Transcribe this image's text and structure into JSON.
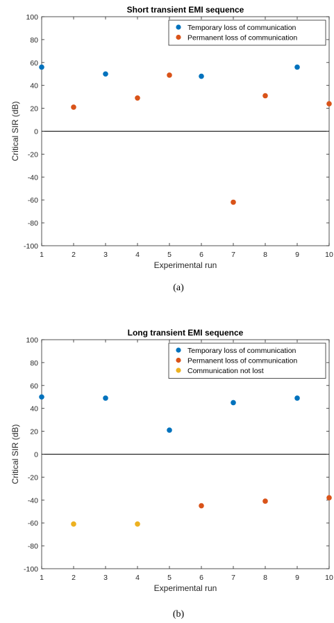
{
  "chart_data": [
    {
      "type": "scatter",
      "title": "Short transient EMI sequence",
      "xlabel": "Experimental run",
      "ylabel": "Critical SIR (dB)",
      "xlim": [
        1,
        10
      ],
      "ylim": [
        -100,
        100
      ],
      "xticks": [
        1,
        2,
        3,
        4,
        5,
        6,
        7,
        8,
        9,
        10
      ],
      "yticks": [
        -100,
        -80,
        -60,
        -40,
        -20,
        0,
        20,
        40,
        60,
        80,
        100
      ],
      "grid": false,
      "zero_line": true,
      "legend_position": "top-right",
      "caption": "(a)",
      "series": [
        {
          "name": "Temporary loss of communication",
          "color": "#0072BD",
          "points": [
            [
              1,
              56
            ],
            [
              3,
              50
            ],
            [
              6,
              48
            ],
            [
              9,
              56
            ]
          ]
        },
        {
          "name": "Permanent loss of communication",
          "color": "#D95319",
          "points": [
            [
              2,
              21
            ],
            [
              4,
              29
            ],
            [
              5,
              49
            ],
            [
              7,
              -62
            ],
            [
              8,
              31
            ],
            [
              10,
              24
            ]
          ]
        }
      ]
    },
    {
      "type": "scatter",
      "title": "Long transient EMI sequence",
      "xlabel": "Experimental run",
      "ylabel": "Critical SIR (dB)",
      "xlim": [
        1,
        10
      ],
      "ylim": [
        -100,
        100
      ],
      "xticks": [
        1,
        2,
        3,
        4,
        5,
        6,
        7,
        8,
        9,
        10
      ],
      "yticks": [
        -100,
        -80,
        -60,
        -40,
        -20,
        0,
        20,
        40,
        60,
        80,
        100
      ],
      "grid": false,
      "zero_line": true,
      "legend_position": "top-right",
      "caption": "(b)",
      "series": [
        {
          "name": "Temporary loss of communication",
          "color": "#0072BD",
          "points": [
            [
              1,
              50
            ],
            [
              3,
              49
            ],
            [
              5,
              21
            ],
            [
              7,
              45
            ],
            [
              9,
              49
            ]
          ]
        },
        {
          "name": "Permanent loss of communication",
          "color": "#D95319",
          "points": [
            [
              6,
              -45
            ],
            [
              8,
              -41
            ],
            [
              10,
              -38
            ]
          ]
        },
        {
          "name": "Communication not lost",
          "color": "#EDB120",
          "points": [
            [
              2,
              -61
            ],
            [
              4,
              -61
            ]
          ]
        }
      ]
    }
  ]
}
